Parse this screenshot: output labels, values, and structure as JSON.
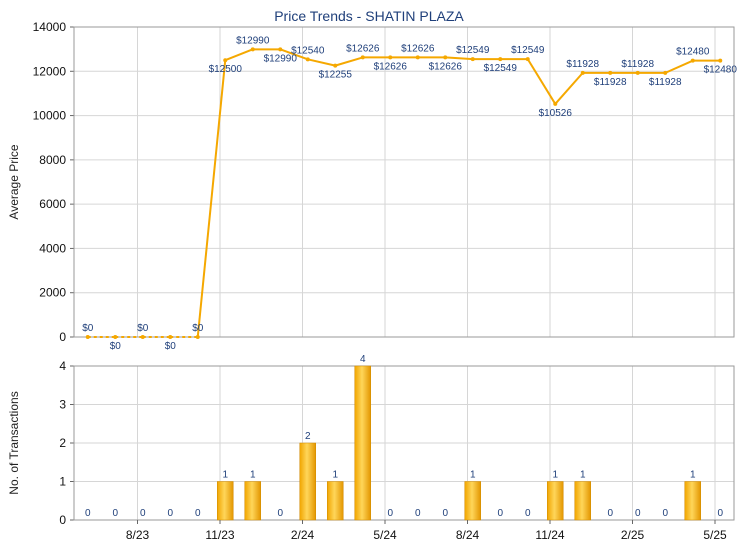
{
  "chart_data": [
    {
      "type": "line",
      "title": "Price Trends - SHATIN PLAZA",
      "ylabel": "Average Price",
      "ylim": [
        0,
        14000
      ],
      "yticks": [
        0,
        2000,
        4000,
        6000,
        8000,
        10000,
        12000,
        14000
      ],
      "series": [
        {
          "values": [
            0,
            0,
            0,
            0,
            0,
            12500,
            12990,
            12990,
            12540,
            12255,
            12626,
            12626,
            12626,
            12626,
            12549,
            12549,
            12549,
            10526,
            11928,
            11928,
            11928,
            11928,
            12480,
            12480
          ],
          "labels": [
            "$0",
            "$0",
            "$0",
            "$0",
            "$0",
            "$12500",
            "$12990",
            "$12990",
            "$12540",
            "$12255",
            "$12626",
            "$12626",
            "$12626",
            "$12626",
            "$12549",
            "$12549",
            "$12549",
            "$10526",
            "$11928",
            "$11928",
            "$11928",
            "$11928",
            "$12480",
            "$12480"
          ],
          "color": "#f5a800"
        }
      ]
    },
    {
      "type": "bar",
      "ylabel": "No. of Transactions",
      "ylim": [
        0,
        4
      ],
      "yticks": [
        0,
        1,
        2,
        3,
        4
      ],
      "x_tick_labels": [
        "8/23",
        "11/23",
        "2/24",
        "5/24",
        "8/24",
        "11/24",
        "2/25",
        "5/25"
      ],
      "values": [
        0,
        0,
        0,
        0,
        0,
        1,
        1,
        0,
        2,
        1,
        4,
        0,
        0,
        0,
        1,
        0,
        0,
        1,
        1,
        0,
        0,
        0,
        1,
        0
      ],
      "color": "#f5a800"
    }
  ]
}
